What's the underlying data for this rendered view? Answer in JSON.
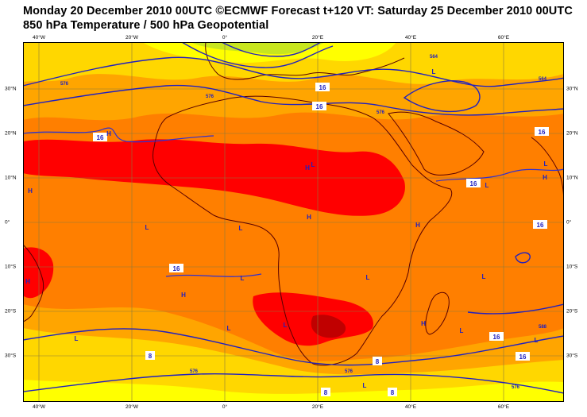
{
  "header": {
    "line1": "Monday 20 December 2010 00UTC ©ECMWF Forecast t+120 VT: Saturday 25 December 2010 00UTC",
    "line2": "850 hPa Temperature / 500 hPa Geopotential"
  },
  "map": {
    "lon_labels": [
      {
        "lon": -40,
        "text": "40°W"
      },
      {
        "lon": -20,
        "text": "20°W"
      },
      {
        "lon": 0,
        "text": "0°"
      },
      {
        "lon": 20,
        "text": "20°E"
      },
      {
        "lon": 40,
        "text": "40°E"
      },
      {
        "lon": 60,
        "text": "60°E"
      }
    ],
    "lat_labels": [
      {
        "lat": 30,
        "text": "30°N"
      },
      {
        "lat": 20,
        "text": "20°N"
      },
      {
        "lat": 10,
        "text": "10°N"
      },
      {
        "lat": 0,
        "text": "0°"
      },
      {
        "lat": -10,
        "text": "10°S"
      },
      {
        "lat": -20,
        "text": "20°S"
      },
      {
        "lat": -30,
        "text": "30°S"
      }
    ],
    "colors": {
      "ocean_band": "#ff7f00",
      "hot": "#ff0000",
      "very_hot": "#c00000",
      "warm": "#ffa500",
      "mild": "#ffd700",
      "cool": "#ffff00",
      "cold": "#c8e61e",
      "contour": "#2020c0",
      "coast": "#5a0000",
      "grid": "#8c7a3c"
    },
    "isotherm_labels": [
      "16",
      "16",
      "16",
      "16",
      "16",
      "16",
      "16",
      "16",
      "8",
      "8",
      "8",
      "8",
      "16"
    ],
    "geopotential_labels": [
      "576",
      "576",
      "576",
      "576",
      "576",
      "564",
      "564",
      "588",
      "576"
    ],
    "pressure_centres": [
      "H",
      "L",
      "H",
      "L",
      "L",
      "L",
      "H",
      "L",
      "H",
      "H",
      "H",
      "L",
      "H",
      "L",
      "L",
      "L",
      "L",
      "H",
      "L",
      "L",
      "H",
      "L",
      "L",
      "L"
    ]
  }
}
